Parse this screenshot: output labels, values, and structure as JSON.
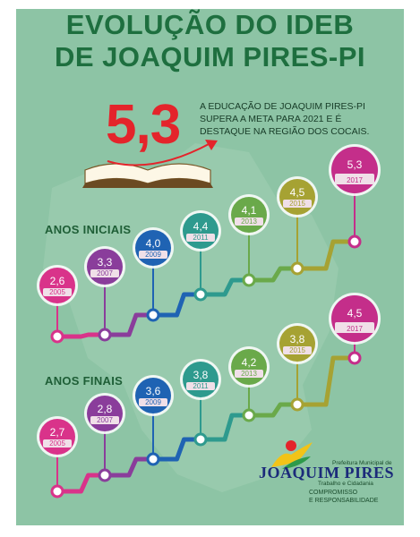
{
  "title": {
    "line1": "EVOLUÇÃO DO IDEB",
    "line2": "DE JOAQUIM PIRES-PI"
  },
  "highlight": {
    "value": "5,3",
    "text": "A EDUCAÇÃO DE JOAQUIM PIRES-PI SUPERA A META PARA 2021 E É DESTAQUE NA REGIÃO DOS COCAIS."
  },
  "colors": {
    "background": "#8dc4a5",
    "title": "#1e6f3f",
    "highlight": "#e4242b",
    "bubble_pink": "#d9338a",
    "bubble_purple": "#8a3d9b",
    "bubble_blue": "#1f63b3",
    "bubble_teal": "#2e9a8e",
    "bubble_green": "#6aa94a",
    "bubble_olive": "#a6a233",
    "bubble_magenta": "#c42e8a"
  },
  "logo": {
    "prefeitura": "Prefeitura Municipal de",
    "name": "JOAQUIM PIRES",
    "subtitle": "Trabalho e Cidadania",
    "slogan_line1": "COMPROMISSO",
    "slogan_line2": "E RESPONSABILIDADE"
  },
  "chart_data": [
    {
      "type": "line",
      "title": "ANOS INICIAIS",
      "categories": [
        "2005",
        "2007",
        "2009",
        "2011",
        "2013",
        "2015",
        "2017"
      ],
      "values": [
        2.6,
        3.3,
        4.0,
        4.4,
        4.1,
        4.5,
        5.3
      ],
      "labels": [
        "2,6",
        "3,3",
        "4,0",
        "4,4",
        "4,1",
        "4,5",
        "5,3"
      ],
      "bubble_colors": [
        "#d9338a",
        "#8a3d9b",
        "#1f63b3",
        "#2e9a8e",
        "#6aa94a",
        "#a6a233",
        "#c42e8a"
      ]
    },
    {
      "type": "line",
      "title": "ANOS FINAIS",
      "categories": [
        "2005",
        "2007",
        "2009",
        "2011",
        "2013",
        "2015",
        "2017"
      ],
      "values": [
        2.7,
        2.8,
        3.6,
        3.8,
        4.2,
        3.8,
        4.5
      ],
      "labels": [
        "2,7",
        "2,8",
        "3,6",
        "3,8",
        "4,2",
        "3,8",
        "4,5"
      ],
      "bubble_colors": [
        "#d9338a",
        "#8a3d9b",
        "#1f63b3",
        "#2e9a8e",
        "#6aa94a",
        "#a6a233",
        "#c42e8a"
      ]
    }
  ]
}
